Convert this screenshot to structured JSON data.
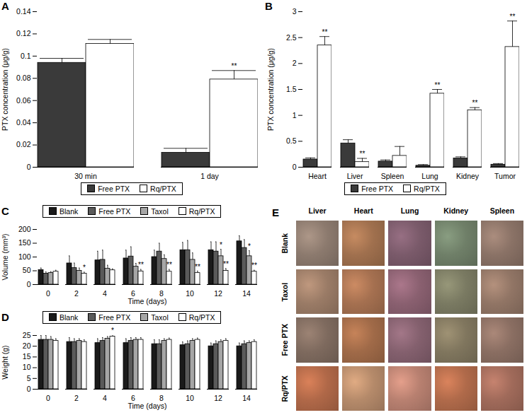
{
  "chart_data": [
    {
      "panel": "A",
      "type": "bar",
      "y_label": "PTX concentration (μg/g)",
      "categories": [
        "30 min",
        "1 day"
      ],
      "series": [
        {
          "name": "Free PTX",
          "color": "#3a3a3a",
          "values": [
            0.094,
            0.013
          ],
          "errors": [
            0.004,
            0.004
          ],
          "significance": [
            null,
            null
          ]
        },
        {
          "name": "Rq/PTX",
          "color": "#ffffff",
          "values": [
            0.111,
            0.079
          ],
          "errors": [
            0.004,
            0.008
          ],
          "significance": [
            null,
            "**"
          ]
        }
      ],
      "ylim": [
        0,
        0.14
      ],
      "yticks": [
        0,
        0.02,
        0.04,
        0.06,
        0.08,
        0.1,
        0.12,
        0.14
      ],
      "grid": false,
      "legend": "bottom"
    },
    {
      "panel": "B",
      "type": "bar",
      "y_label": "PTX concentration (μg/g)",
      "categories": [
        "Heart",
        "Liver",
        "Spleen",
        "Lung",
        "Kidney",
        "Tumor"
      ],
      "series": [
        {
          "name": "Free PTX",
          "color": "#3a3a3a",
          "values": [
            0.15,
            0.46,
            0.11,
            0.03,
            0.17,
            0.05
          ],
          "errors": [
            0.03,
            0.07,
            0.03,
            0.02,
            0.03,
            0.02
          ],
          "significance": [
            null,
            null,
            null,
            null,
            null,
            null
          ]
        },
        {
          "name": "Rq/PTX",
          "color": "#ffffff",
          "values": [
            2.35,
            0.1,
            0.22,
            1.42,
            1.1,
            2.32
          ],
          "errors": [
            0.17,
            0.07,
            0.18,
            0.08,
            0.05,
            0.5
          ],
          "significance": [
            "**",
            "**",
            null,
            "**",
            "**",
            "**"
          ]
        }
      ],
      "ylim": [
        0,
        3
      ],
      "yticks": [
        0,
        0.5,
        1,
        1.5,
        2,
        2.5,
        3
      ],
      "grid": false,
      "legend": "bottom"
    },
    {
      "panel": "C",
      "type": "bar",
      "y_label": "Volume (mm³)",
      "x_label": "Time (days)",
      "categories": [
        0,
        2,
        4,
        6,
        8,
        10,
        12,
        14
      ],
      "series": [
        {
          "name": "Blank",
          "color": "#1a1a1a",
          "values": [
            53,
            77,
            88,
            95,
            100,
            125,
            125,
            157
          ],
          "errors": [
            7,
            27,
            33,
            30,
            25,
            28,
            30,
            20
          ],
          "significance": [
            null,
            null,
            null,
            null,
            null,
            null,
            null,
            null
          ]
        },
        {
          "name": "Free PTX",
          "color": "#5a5a5a",
          "values": [
            40,
            60,
            90,
            102,
            120,
            125,
            120,
            133
          ],
          "errors": [
            6,
            18,
            35,
            35,
            30,
            35,
            35,
            30
          ],
          "significance": [
            null,
            null,
            null,
            null,
            null,
            null,
            null,
            null
          ]
        },
        {
          "name": "Taxol",
          "color": "#a6a6a6",
          "values": [
            42,
            50,
            58,
            65,
            93,
            90,
            103,
            103
          ],
          "errors": [
            5,
            10,
            12,
            12,
            15,
            25,
            25,
            20
          ],
          "significance": [
            null,
            null,
            null,
            null,
            null,
            null,
            "*",
            "*"
          ]
        },
        {
          "name": "Rq/PTX",
          "color": "#ffffff",
          "values": [
            47,
            40,
            52,
            48,
            47,
            42,
            50,
            47
          ],
          "errors": [
            5,
            5,
            5,
            7,
            8,
            7,
            8,
            5
          ],
          "significance": [
            null,
            "*",
            null,
            "**",
            "**",
            "**",
            "**",
            "**"
          ]
        }
      ],
      "ylim": [
        0,
        200
      ],
      "yticks": [
        0,
        50,
        100,
        150,
        200
      ],
      "grid": false,
      "legend": "top"
    },
    {
      "panel": "D",
      "type": "bar",
      "y_label": "Weight (g)",
      "x_label": "Time (days)",
      "categories": [
        0,
        2,
        4,
        6,
        8,
        10,
        12,
        14
      ],
      "series": [
        {
          "name": "Blank",
          "color": "#1a1a1a",
          "values": [
            23,
            22,
            21.5,
            21.5,
            21,
            20.5,
            20,
            20
          ],
          "errors": [
            2,
            2,
            2,
            2,
            2,
            1.5,
            1.5,
            1.5
          ],
          "significance": [
            null,
            null,
            null,
            null,
            null,
            null,
            null,
            null
          ]
        },
        {
          "name": "Free PTX",
          "color": "#5a5a5a",
          "values": [
            23,
            22,
            22.5,
            22.5,
            21,
            21,
            21,
            21
          ],
          "errors": [
            2,
            1.5,
            1.5,
            1.5,
            2,
            1.5,
            1.5,
            1.5
          ],
          "significance": [
            null,
            null,
            null,
            null,
            null,
            null,
            null,
            null
          ]
        },
        {
          "name": "Taxol",
          "color": "#a6a6a6",
          "values": [
            23,
            22.5,
            23.5,
            23,
            22.5,
            22.5,
            22,
            21.5
          ],
          "errors": [
            1.5,
            1,
            1,
            1,
            1,
            1,
            1,
            1
          ],
          "significance": [
            null,
            null,
            null,
            null,
            null,
            null,
            null,
            null
          ]
        },
        {
          "name": "Rq/PTX",
          "color": "#ffffff",
          "values": [
            22.5,
            22,
            24.5,
            23,
            23,
            23,
            22.5,
            22
          ],
          "errors": [
            1,
            1,
            0.8,
            1,
            0.8,
            0.8,
            1,
            1
          ],
          "significance": [
            null,
            null,
            "*",
            null,
            null,
            null,
            null,
            null
          ]
        }
      ],
      "ylim": [
        0,
        25
      ],
      "yticks": [
        0,
        5,
        10,
        15,
        20,
        25
      ],
      "grid": false,
      "legend": "top"
    },
    {
      "panel": "E",
      "type": "image_grid",
      "columns": [
        "Liver",
        "Heart",
        "Lung",
        "Kidney",
        "Spleen"
      ],
      "rows": [
        "Blank",
        "Taxol",
        "Free PTX",
        "Rq/PTX"
      ]
    }
  ]
}
